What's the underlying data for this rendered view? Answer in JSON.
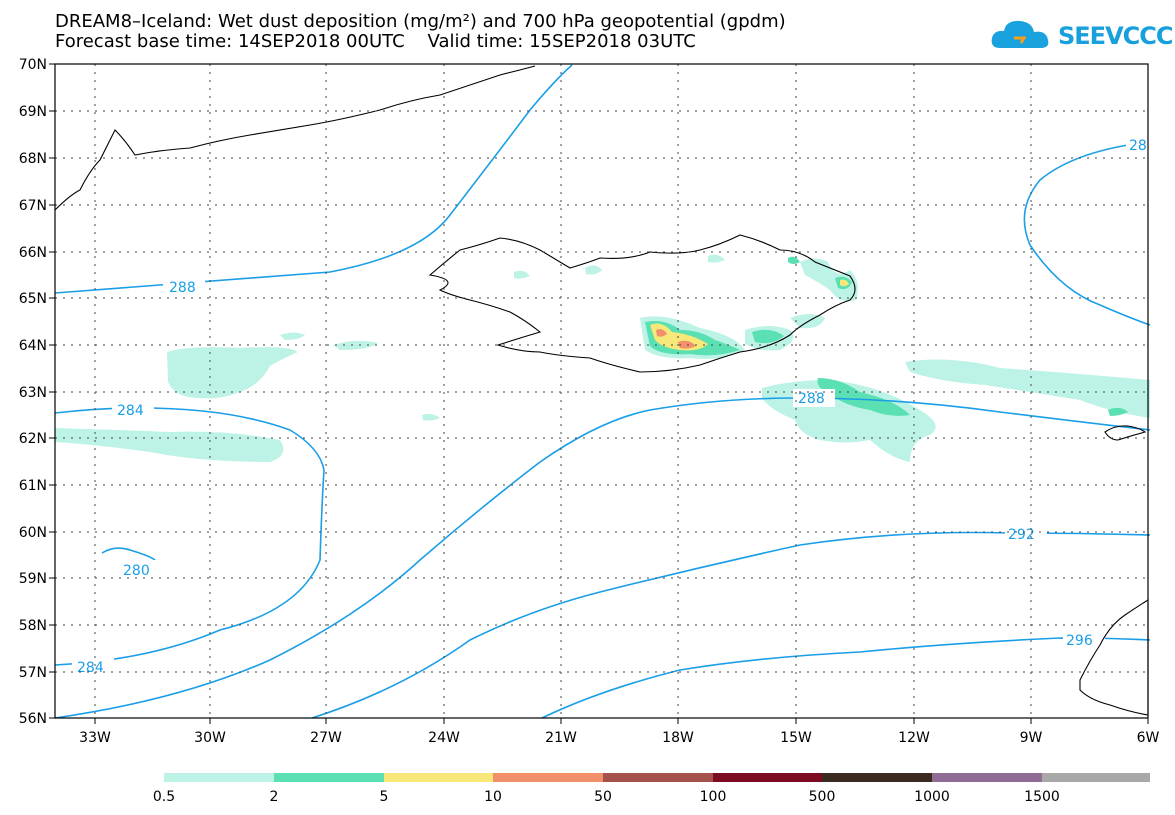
{
  "title_line1": "DREAM8–Iceland: Wet dust deposition (mg/m²) and 700 hPa geopotential (gpdm)",
  "title_line2": "Forecast base time: 14SEP2018 00UTC    Valid time: 15SEP2018 03UTC",
  "logo_text": "SEEVCCC",
  "colors": {
    "contour": "#1a9ee8",
    "coast": "#000000",
    "shade_0_5": "#bdf3e6",
    "shade_2": "#5ae0b2",
    "shade_5": "#f7e879",
    "shade_10": "#f1906a"
  },
  "map": {
    "lon_range": [
      -34.3,
      -6
    ],
    "lat_range": [
      56,
      70
    ],
    "lon_ticks": [
      "33W",
      "30W",
      "27W",
      "24W",
      "21W",
      "18W",
      "15W",
      "12W",
      "9W",
      "6W"
    ],
    "lat_ticks": [
      "70N",
      "69N",
      "68N",
      "67N",
      "66N",
      "65N",
      "64N",
      "63N",
      "62N",
      "61N",
      "60N",
      "59N",
      "58N",
      "57N",
      "56N"
    ],
    "contour_labels": [
      "288",
      "284",
      "280",
      "284",
      "288",
      "292",
      "296",
      "28"
    ]
  },
  "legend": {
    "colors": [
      "#bdf3e6",
      "#5ae0b2",
      "#f7e879",
      "#f1906a",
      "#a5514c",
      "#7d0b24",
      "#3b2a1f",
      "#906c95",
      "#a8a8a8"
    ],
    "labels": [
      "0.5",
      "2",
      "5",
      "10",
      "50",
      "100",
      "500",
      "1000",
      "1500"
    ]
  }
}
